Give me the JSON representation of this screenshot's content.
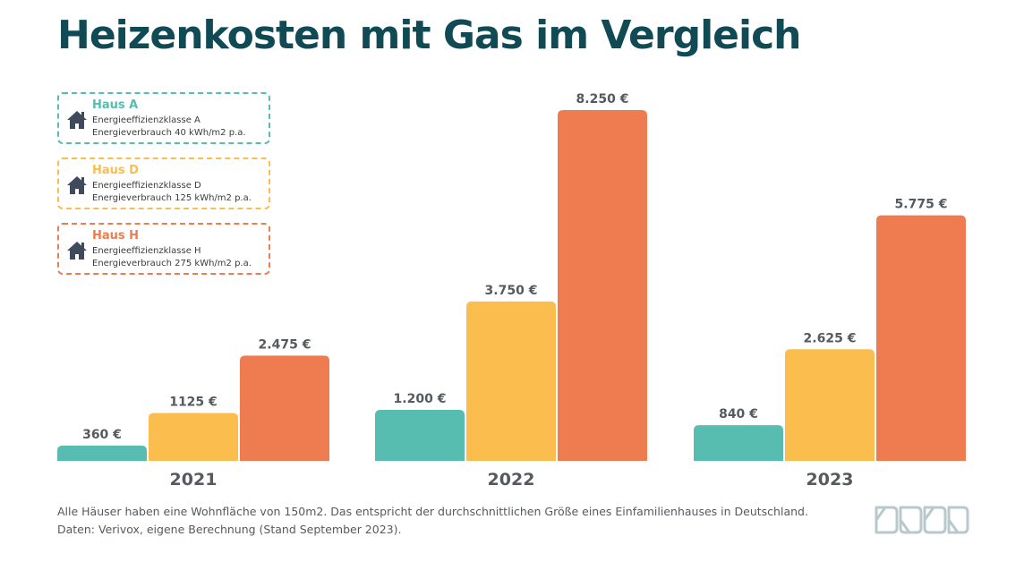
{
  "title": "Heizenkosten mit Gas im Vergleich",
  "legend": [
    {
      "name": "Haus A",
      "line1": "Energieeffizienzklasse A",
      "line2": "Energieverbrauch 40 kWh/m2 p.a.",
      "color": "#56bdb0",
      "icon": "house-icon"
    },
    {
      "name": "Haus D",
      "line1": "Energieeffizienzklasse D",
      "line2": "Energieverbrauch 125 kWh/m2 p.a.",
      "color": "#fbbd4e",
      "icon": "house-icon"
    },
    {
      "name": "Haus H",
      "line1": "Energieeffizienzklasse H",
      "line2": "Energieverbrauch 275 kWh/m2 p.a.",
      "color": "#ee7c50",
      "icon": "house-icon"
    }
  ],
  "chart_data": {
    "type": "bar",
    "title": "Heizenkosten mit Gas im Vergleich",
    "categories": [
      "2021",
      "2022",
      "2023"
    ],
    "series": [
      {
        "name": "Haus A",
        "values": [
          360,
          1200,
          840
        ],
        "labels": [
          "360 €",
          "1.200 €",
          "840 €"
        ],
        "color": "#56bdb0"
      },
      {
        "name": "Haus D",
        "values": [
          1125,
          3750,
          2625
        ],
        "labels": [
          "1125 €",
          "3.750 €",
          "2.625 €"
        ],
        "color": "#fbbd4e"
      },
      {
        "name": "Haus H",
        "values": [
          2475,
          8250,
          5775
        ],
        "labels": [
          "2.475 €",
          "8.250 €",
          "5.775 €"
        ],
        "color": "#ee7c50"
      }
    ],
    "ylim": [
      0,
      8250
    ],
    "grid": false,
    "legend_position": "top-left",
    "xlabel": "",
    "ylabel": ""
  },
  "footnote": {
    "line1": "Alle Häuser haben eine Wohnfläche von 150m2. Das entspricht der durchschnittlichen Größe eines Einfamilienhauses in Deutschland.",
    "line2": "Daten: Verivox, eigene Berechnung (Stand September 2023)."
  },
  "colors": {
    "title": "#0f4a55",
    "logo": "#b9c8cc",
    "label": "#555a5e"
  }
}
